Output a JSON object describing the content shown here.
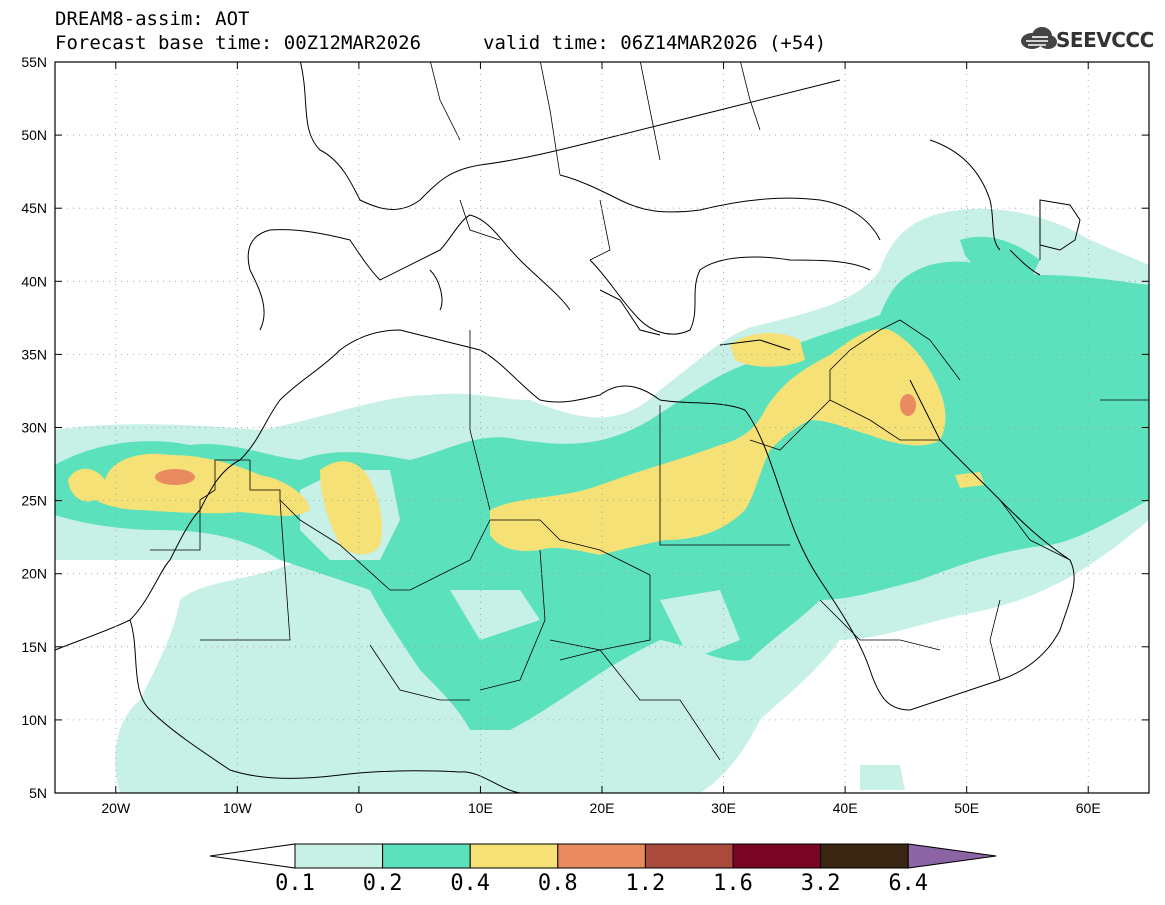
{
  "header": {
    "line1": "DREAM8-assim: AOT",
    "line2": "Forecast base time: 00Z12MAR2026",
    "line3": "valid time: 06Z14MAR2026 (+54)"
  },
  "logo": {
    "text": "SEEVCCC",
    "icon": "cloud-icon"
  },
  "map": {
    "lon_range": [
      -25,
      65
    ],
    "lat_range": [
      5,
      55
    ],
    "lon_ticks": [
      {
        "value": -20,
        "label": "20W"
      },
      {
        "value": -10,
        "label": "10W"
      },
      {
        "value": 0,
        "label": "0"
      },
      {
        "value": 10,
        "label": "10E"
      },
      {
        "value": 20,
        "label": "20E"
      },
      {
        "value": 30,
        "label": "30E"
      },
      {
        "value": 40,
        "label": "40E"
      },
      {
        "value": 50,
        "label": "50E"
      },
      {
        "value": 60,
        "label": "60E"
      }
    ],
    "lat_ticks": [
      {
        "value": 55,
        "label": "55N"
      },
      {
        "value": 50,
        "label": "50N"
      },
      {
        "value": 45,
        "label": "45N"
      },
      {
        "value": 40,
        "label": "40N"
      },
      {
        "value": 35,
        "label": "35N"
      },
      {
        "value": 30,
        "label": "30N"
      },
      {
        "value": 25,
        "label": "25N"
      },
      {
        "value": 20,
        "label": "20N"
      },
      {
        "value": 15,
        "label": "15N"
      },
      {
        "value": 10,
        "label": "10N"
      },
      {
        "value": 5,
        "label": "5N"
      }
    ],
    "grid": true
  },
  "colorbar": {
    "levels": [
      "0.1",
      "0.2",
      "0.4",
      "0.8",
      "1.2",
      "1.6",
      "3.2",
      "6.4"
    ],
    "colors": [
      "#ffffff",
      "#c7f0e7",
      "#5ce1bd",
      "#f5e175",
      "#e98a61",
      "#a94a3c",
      "#7a0426",
      "#3a2412",
      "#8a64a5"
    ]
  },
  "chart_data": {
    "type": "heatmap",
    "variable": "AOT",
    "hotspots": [
      {
        "lon": -15,
        "lat": 26.8,
        "level": "0.8-1.2"
      },
      {
        "lon": 45,
        "lat": 31.5,
        "level": "0.8-1.2"
      }
    ]
  }
}
